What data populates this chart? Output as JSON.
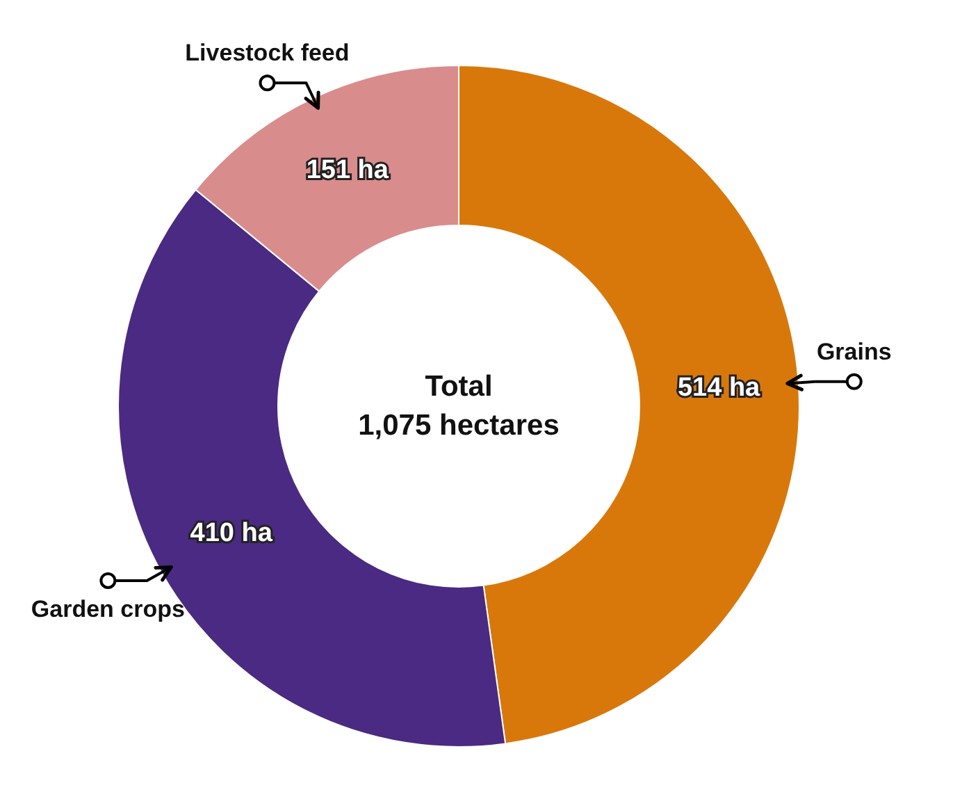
{
  "chart_data": {
    "type": "donut",
    "categories": [
      "Grains",
      "Garden crops",
      "Livestock feed"
    ],
    "values": [
      514,
      410,
      151
    ],
    "colors": [
      "#d9780a",
      "#4a2a82",
      "#d98c8c"
    ],
    "value_labels": [
      "514 ha",
      "410 ha",
      "151 ha"
    ],
    "annotations": [
      "Total",
      "1,075 hectares"
    ]
  }
}
